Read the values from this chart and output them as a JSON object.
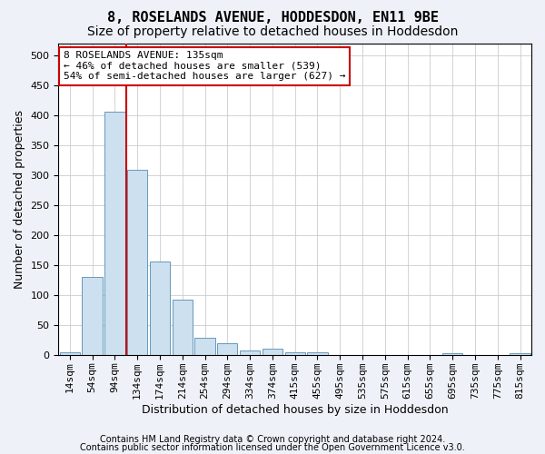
{
  "title": "8, ROSELANDS AVENUE, HODDESDON, EN11 9BE",
  "subtitle": "Size of property relative to detached houses in Hoddesdon",
  "xlabel": "Distribution of detached houses by size in Hoddesdon",
  "ylabel": "Number of detached properties",
  "footer1": "Contains HM Land Registry data © Crown copyright and database right 2024.",
  "footer2": "Contains public sector information licensed under the Open Government Licence v3.0.",
  "bar_labels": [
    "14sqm",
    "54sqm",
    "94sqm",
    "134sqm",
    "174sqm",
    "214sqm",
    "254sqm",
    "294sqm",
    "334sqm",
    "374sqm",
    "415sqm",
    "455sqm",
    "495sqm",
    "535sqm",
    "575sqm",
    "615sqm",
    "655sqm",
    "695sqm",
    "735sqm",
    "775sqm",
    "815sqm"
  ],
  "bar_values": [
    5,
    130,
    405,
    308,
    155,
    92,
    28,
    19,
    8,
    11,
    5,
    5,
    0,
    0,
    0,
    0,
    0,
    2,
    0,
    0,
    2
  ],
  "bar_color": "#cce0f0",
  "bar_edge_color": "#6699bb",
  "vline_color": "#cc0000",
  "vline_pos": 2.5,
  "annotation_line1": "8 ROSELANDS AVENUE: 135sqm",
  "annotation_line2": "← 46% of detached houses are smaller (539)",
  "annotation_line3": "54% of semi-detached houses are larger (627) →",
  "annotation_box_color": "#ffffff",
  "annotation_box_edge": "#cc0000",
  "ylim": [
    0,
    520
  ],
  "yticks": [
    0,
    50,
    100,
    150,
    200,
    250,
    300,
    350,
    400,
    450,
    500
  ],
  "title_fontsize": 11,
  "subtitle_fontsize": 10,
  "ylabel_fontsize": 9,
  "xlabel_fontsize": 9,
  "tick_fontsize": 8,
  "annot_fontsize": 8,
  "bg_color": "#eef2f8",
  "plot_bg_color": "#ffffff",
  "footer_fontsize": 7
}
